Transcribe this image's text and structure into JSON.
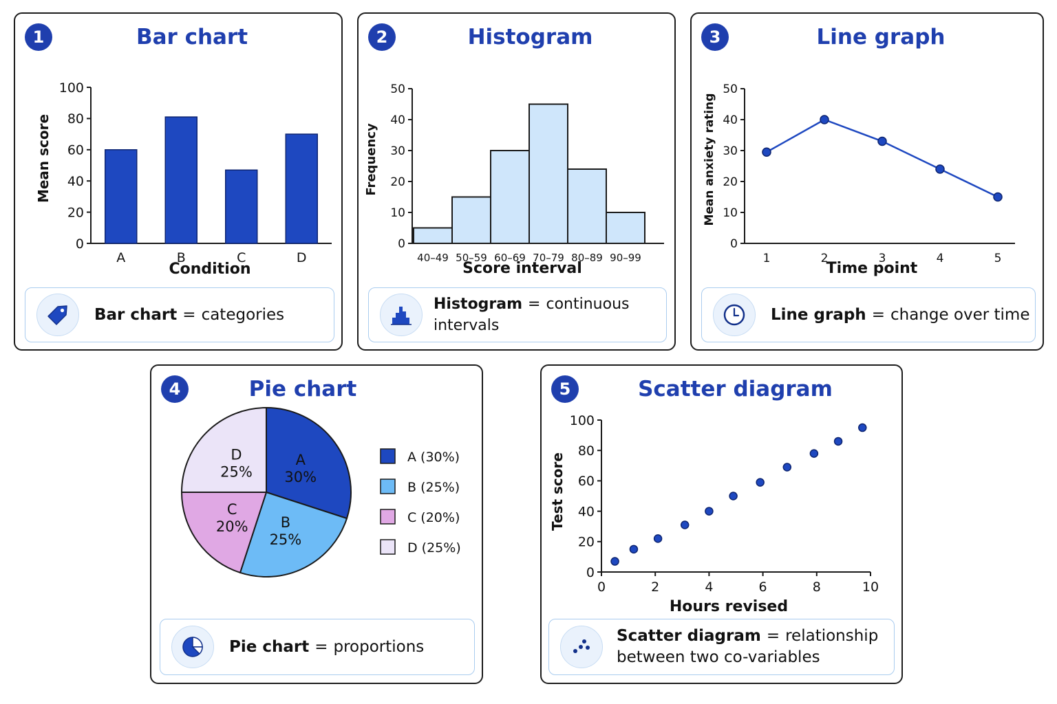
{
  "colors": {
    "accent": "#1f3fae",
    "bar": "#1e48c0",
    "hist": "#cfe6fb",
    "line": "#1e48c0",
    "pie_a": "#1e48c0",
    "pie_b": "#6dbbf6",
    "pie_c": "#e0a8e4",
    "pie_d": "#ebe4f8",
    "caption_border": "#a9ccef"
  },
  "panels": [
    {
      "number": "1",
      "title": "Bar chart",
      "caption": {
        "term": "Bar chart",
        "eq": "=",
        "desc": "categories",
        "icon": "tag-icon"
      }
    },
    {
      "number": "2",
      "title": "Histogram",
      "caption": {
        "term": "Histogram",
        "eq": "=",
        "desc": "continuous intervals",
        "icon": "histogram-icon"
      }
    },
    {
      "number": "3",
      "title": "Line graph",
      "caption": {
        "term": "Line graph",
        "eq": "=",
        "desc": "change over time",
        "icon": "clock-icon"
      }
    },
    {
      "number": "4",
      "title": "Pie chart",
      "caption": {
        "term": "Pie chart",
        "eq": "=",
        "desc": "proportions",
        "icon": "pie-chart-icon"
      }
    },
    {
      "number": "5",
      "title": "Scatter diagram",
      "caption": {
        "term": "Scatter diagram",
        "eq": "=",
        "desc": "relationship",
        "desc2": "between two co-variables",
        "icon": "scatter-icon"
      }
    }
  ],
  "chart_data": [
    {
      "type": "bar",
      "title": "Bar chart",
      "categories": [
        "A",
        "B",
        "C",
        "D"
      ],
      "values": [
        60,
        81,
        47,
        70
      ],
      "xlabel": "Condition",
      "ylabel": "Mean score",
      "ylim": [
        0,
        100
      ],
      "yticks": [
        "0",
        "20",
        "40",
        "60",
        "80",
        "100"
      ],
      "grid": false
    },
    {
      "type": "bar",
      "subtype": "histogram",
      "title": "Histogram",
      "categories": [
        "40–49",
        "50–59",
        "60–69",
        "70–79",
        "80–89",
        "90–99"
      ],
      "values": [
        5,
        15,
        30,
        45,
        24,
        10
      ],
      "xlabel": "Score interval",
      "ylabel": "Frequency",
      "ylim": [
        0,
        50
      ],
      "yticks": [
        "0",
        "10",
        "20",
        "30",
        "40",
        "50"
      ],
      "grid": false
    },
    {
      "type": "line",
      "title": "Line graph",
      "x": [
        1,
        2,
        3,
        4,
        5
      ],
      "values": [
        29.5,
        40,
        33,
        24,
        15
      ],
      "xlabel": "Time point",
      "ylabel": "Mean anxiety rating",
      "xticks": [
        "1",
        "2",
        "3",
        "4",
        "5"
      ],
      "ylim": [
        0,
        50
      ],
      "yticks": [
        "0",
        "10",
        "20",
        "30",
        "40",
        "50"
      ],
      "grid": false
    },
    {
      "type": "pie",
      "title": "Pie chart",
      "slices": [
        {
          "label": "A",
          "value": 30,
          "pct": "30%",
          "legend": "A (30%)"
        },
        {
          "label": "B",
          "value": 25,
          "pct": "25%",
          "legend": "B (25%)"
        },
        {
          "label": "C",
          "value": 20,
          "pct": "20%",
          "legend": "C (20%)"
        },
        {
          "label": "D",
          "value": 25,
          "pct": "25%",
          "legend": "D (25%)"
        }
      ],
      "legend_position": "right"
    },
    {
      "type": "scatter",
      "title": "Scatter diagram",
      "x": [
        0.5,
        1.2,
        2.1,
        3.1,
        4.0,
        4.9,
        5.9,
        6.9,
        7.9,
        8.8,
        9.7
      ],
      "y": [
        7,
        15,
        22,
        31,
        40,
        50,
        59,
        69,
        78,
        86,
        95
      ],
      "xlabel": "Hours revised",
      "ylabel": "Test score",
      "xlim": [
        0,
        10
      ],
      "ylim": [
        0,
        100
      ],
      "xticks": [
        "0",
        "2",
        "4",
        "6",
        "8",
        "10"
      ],
      "yticks": [
        "0",
        "20",
        "40",
        "60",
        "80",
        "100"
      ],
      "grid": false
    }
  ]
}
